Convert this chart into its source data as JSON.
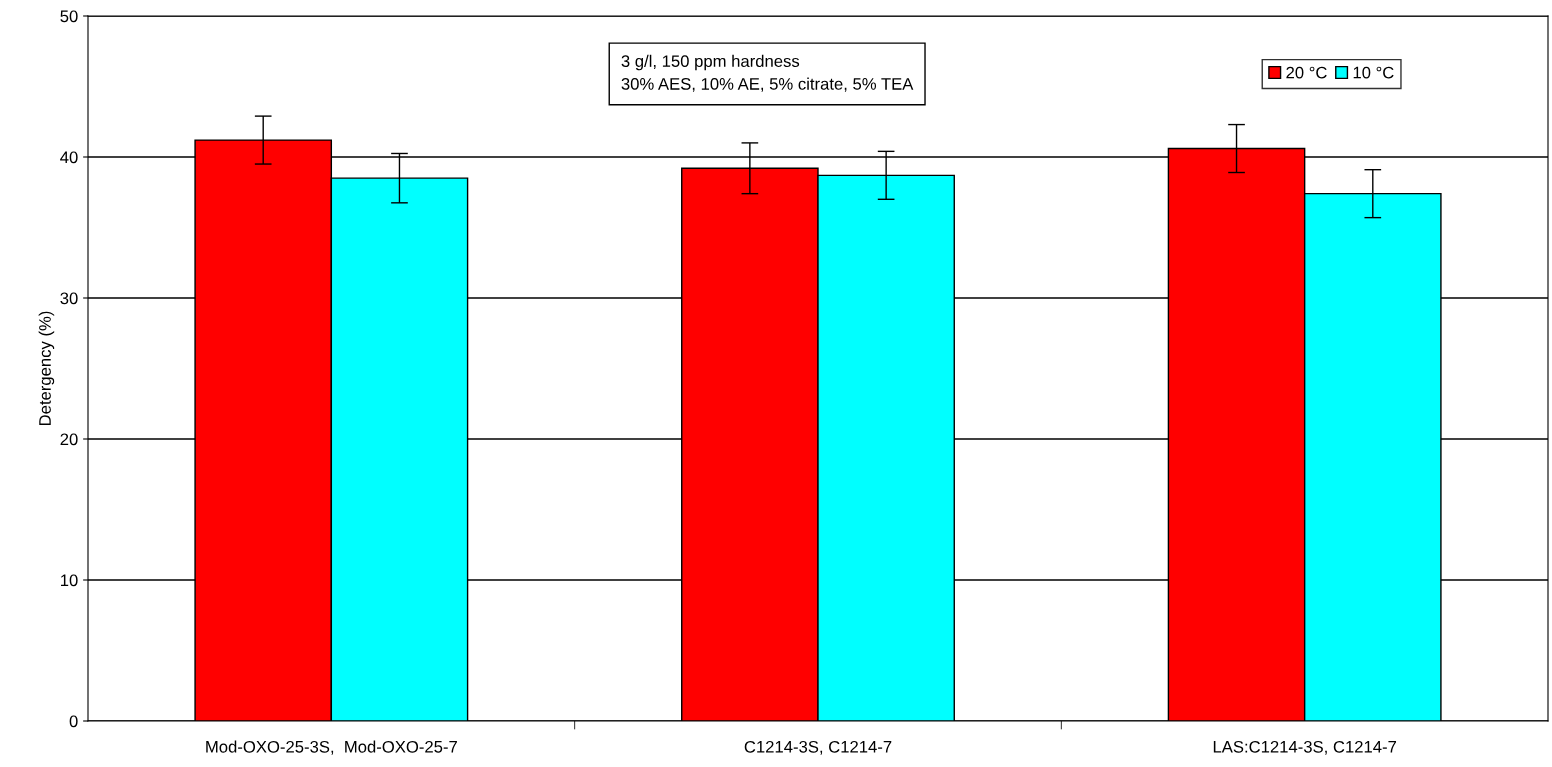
{
  "chart_data": {
    "type": "bar",
    "ylabel": "Detergency (%)",
    "categories": [
      "Mod-OXO-25-3S,  Mod-OXO-25-7",
      "C1214-3S, C1214-7",
      "LAS:C1214-3S, C1214-7"
    ],
    "series": [
      {
        "name": "20 °C",
        "color": "#ff0000",
        "values": [
          41.2,
          39.2,
          40.6
        ],
        "errors": [
          1.7,
          1.8,
          1.7
        ]
      },
      {
        "name": "10 °C",
        "color": "#00ffff",
        "values": [
          38.5,
          38.7,
          37.4
        ],
        "errors": [
          1.75,
          1.7,
          1.7
        ]
      }
    ],
    "ylim": [
      0,
      50
    ],
    "yticks": [
      0,
      10,
      20,
      30,
      40,
      50
    ],
    "grid": "y",
    "legend": "top right",
    "annotations": [
      "3 g/l, 150 ppm hardness\n30% AES, 10% AE, 5% citrate, 5% TEA"
    ]
  }
}
